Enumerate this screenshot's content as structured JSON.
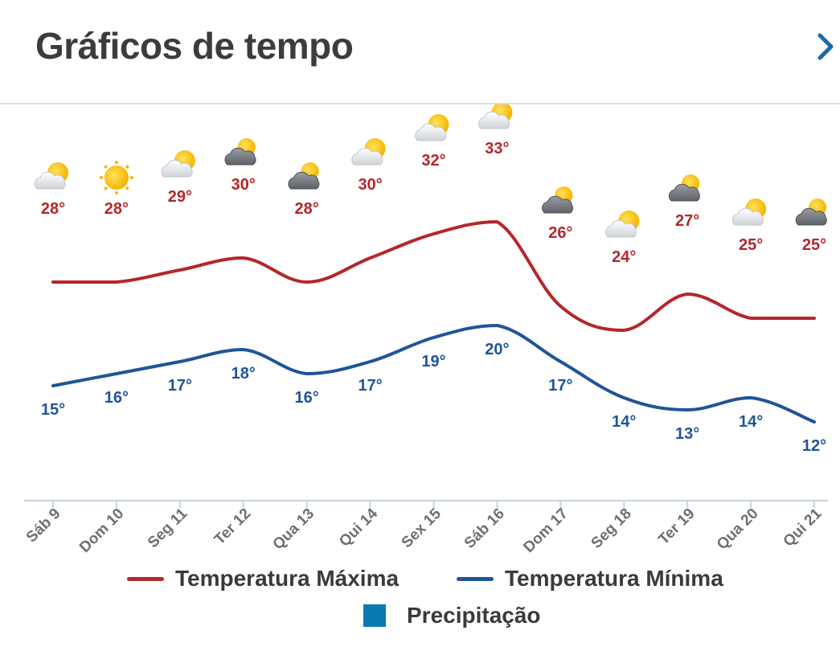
{
  "header": {
    "title": "Gráficos de tempo",
    "next_icon": "chevron-right-icon"
  },
  "chart_data": {
    "type": "line",
    "categories": [
      "Sáb 9",
      "Dom 10",
      "Seg 11",
      "Ter 12",
      "Qua 13",
      "Qui 14",
      "Sex 15",
      "Sáb 16",
      "Dom 17",
      "Seg 18",
      "Ter 19",
      "Qua 20",
      "Qui 21"
    ],
    "series": [
      {
        "name": "Temperatura Máxima",
        "color": "#b5262a",
        "values": [
          28,
          28,
          29,
          30,
          28,
          30,
          32,
          33,
          26,
          24,
          27,
          25,
          25
        ],
        "labels": [
          "28°",
          "28°",
          "29°",
          "30°",
          "28°",
          "30°",
          "32°",
          "33°",
          "26°",
          "24°",
          "27°",
          "25°",
          "25°"
        ]
      },
      {
        "name": "Temperatura Mínima",
        "color": "#1f5597",
        "values": [
          15,
          16,
          17,
          18,
          16,
          17,
          19,
          20,
          17,
          14,
          13,
          14,
          12
        ],
        "labels": [
          "15°",
          "16°",
          "17°",
          "18°",
          "16°",
          "17°",
          "19°",
          "20°",
          "17°",
          "14°",
          "13°",
          "14°",
          "12°"
        ]
      }
    ],
    "precipitation": {
      "name": "Precipitação",
      "color": "#0a79b3"
    },
    "icons": [
      "partly-cloudy-icon",
      "sunny-icon",
      "partly-cloudy-icon",
      "cloudy-sun-icon",
      "cloudy-sun-icon",
      "partly-cloudy-icon",
      "partly-cloudy-icon",
      "partly-cloudy-icon",
      "cloudy-sun-icon",
      "partly-cloudy-icon",
      "cloudy-sun-icon",
      "partly-cloudy-icon",
      "cloudy-sun-icon"
    ],
    "legend": "bottom"
  },
  "legend": {
    "max_label": "Temperatura Máxima",
    "min_label": "Temperatura Mínima",
    "precip_label": "Precipitação"
  }
}
